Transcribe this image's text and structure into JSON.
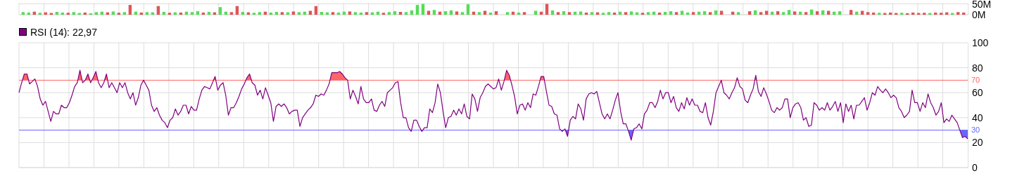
{
  "chart_data": [
    {
      "type": "bar",
      "categories": [
        null,
        null,
        null,
        null,
        null,
        null,
        null,
        null,
        null,
        null,
        null,
        null,
        null,
        null,
        null,
        null,
        null,
        null,
        null,
        null,
        null,
        null,
        null,
        null,
        null,
        null,
        null,
        null,
        null,
        null,
        null,
        null,
        null,
        null,
        null,
        null,
        null,
        null,
        null,
        null,
        null,
        null,
        null,
        null,
        null,
        null,
        null,
        null,
        null,
        null,
        null,
        null,
        null,
        null,
        null,
        null,
        null,
        null,
        null,
        null,
        null,
        null,
        null,
        null,
        null,
        null,
        null,
        null,
        null,
        null,
        null,
        null,
        null,
        null,
        null,
        null,
        null,
        null,
        null,
        null,
        null,
        null,
        null,
        null,
        null,
        null,
        null,
        null,
        null,
        null,
        null,
        null,
        null,
        null,
        null,
        null,
        null,
        null,
        null,
        null,
        null,
        null,
        null,
        null,
        null,
        null,
        null,
        null,
        null,
        null,
        null,
        null,
        null,
        null,
        null,
        null,
        null,
        null,
        null,
        null,
        null,
        null,
        null,
        null,
        null,
        null,
        null,
        null,
        null,
        null,
        null,
        null,
        null,
        null,
        null,
        null,
        null,
        null,
        null,
        null,
        null,
        null,
        null,
        null,
        null,
        null,
        null,
        null,
        null,
        null,
        null,
        null,
        null,
        null,
        null,
        null,
        null,
        null,
        null,
        null,
        null,
        null,
        null,
        null,
        null,
        null,
        null,
        null
      ],
      "values": [
        12,
        10,
        14,
        9,
        11,
        8,
        13,
        10,
        9,
        12,
        8,
        10,
        7,
        12,
        14,
        11,
        15,
        9,
        12,
        45,
        14,
        10,
        12,
        11,
        40,
        13,
        9,
        11,
        10,
        14,
        12,
        16,
        10,
        13,
        11,
        35,
        14,
        12,
        40,
        13,
        11,
        9,
        12,
        14,
        10,
        13,
        12,
        11,
        15,
        12,
        14,
        18,
        40,
        13,
        11,
        12,
        10,
        14,
        15,
        12,
        10,
        12,
        11,
        14,
        9,
        12,
        16,
        13,
        12,
        20,
        45,
        50,
        18,
        22,
        14,
        16,
        20,
        15,
        12,
        48,
        14,
        12,
        18,
        10,
        16,
        null,
        12,
        14,
        10,
        12,
        null,
        18,
        14,
        50,
        20,
        12,
        16,
        12,
        14,
        15,
        10,
        12,
        11,
        9,
        12,
        10,
        14,
        12,
        15,
        11,
        9,
        12,
        14,
        10,
        13,
        16,
        12,
        18,
        10,
        12,
        14,
        16,
        12,
        20,
        18,
        null,
        14,
        12,
        null,
        16,
        20,
        12,
        18,
        14,
        16,
        12,
        22,
        15,
        14,
        12,
        24,
        16,
        20,
        18,
        14,
        16,
        null,
        22,
        14,
        18,
        12,
        10,
        9,
        8,
        10,
        8,
        9,
        7,
        10,
        8,
        9,
        8,
        10,
        9,
        11,
        8,
        12,
        10
      ],
      "colors": [
        "#55dd55",
        "#55dd55",
        "#e05555",
        "#55dd55",
        "#e05555",
        "#e05555",
        "#55dd55",
        "#55dd55",
        "#e05555",
        "#55dd55",
        "#55dd55",
        "#e05555",
        "#55dd55",
        "#55dd55",
        "#55dd55",
        "#e05555",
        "#55dd55",
        "#e05555",
        "#55dd55",
        "#e05555",
        "#55dd55",
        "#e05555",
        "#55dd55",
        "#55dd55",
        "#e05555",
        "#55dd55",
        "#e05555",
        "#55dd55",
        "#e05555",
        "#55dd55",
        "#55dd55",
        "#55dd55",
        "#e05555",
        "#55dd55",
        "#e05555",
        "#55dd55",
        "#55dd55",
        "#e05555",
        "#e05555",
        "#55dd55",
        "#e05555",
        "#55dd55",
        "#55dd55",
        "#e05555",
        "#55dd55",
        "#55dd55",
        "#e05555",
        "#55dd55",
        "#e05555",
        "#55dd55",
        "#55dd55",
        "#e05555",
        "#e05555",
        "#55dd55",
        "#55dd55",
        "#e05555",
        "#55dd55",
        "#55dd55",
        "#e05555",
        "#55dd55",
        "#55dd55",
        "#e05555",
        "#55dd55",
        "#55dd55",
        "#e05555",
        "#55dd55",
        "#55dd55",
        "#e05555",
        "#55dd55",
        "#55dd55",
        "#55dd55",
        "#55dd55",
        "#e05555",
        "#55dd55",
        "#e05555",
        "#55dd55",
        "#55dd55",
        "#e05555",
        "#55dd55",
        "#55dd55",
        "#e05555",
        "#55dd55",
        "#e05555",
        "#55dd55",
        "#e05555",
        "#e05555",
        "#55dd55",
        "#e05555",
        "#55dd55",
        "#e05555",
        "#e05555",
        "#55dd55",
        "#e05555",
        "#e05555",
        "#55dd55",
        "#e05555",
        "#55dd55",
        "#e05555",
        "#55dd55",
        "#55dd55",
        "#e05555",
        "#55dd55",
        "#e05555",
        "#55dd55",
        "#55dd55",
        "#e05555",
        "#55dd55",
        "#e05555",
        "#55dd55",
        "#55dd55",
        "#e05555",
        "#55dd55",
        "#55dd55",
        "#e05555",
        "#55dd55",
        "#55dd55",
        "#e05555",
        "#55dd55",
        "#55dd55",
        "#e05555",
        "#55dd55",
        "#55dd55",
        "#e05555",
        "#55dd55",
        "#e05555",
        "#55dd55",
        "#e05555",
        "#55dd55",
        "#55dd55",
        "#e05555",
        "#55dd55",
        "#e05555",
        "#e05555",
        "#55dd55",
        "#e05555",
        "#55dd55",
        "#55dd55",
        "#e05555",
        "#55dd55",
        "#e05555",
        "#55dd55",
        "#e05555",
        "#55dd55",
        "#e05555",
        "#55dd55",
        "#55dd55",
        "#e05555",
        "#e05555",
        "#55dd55",
        "#e05555",
        "#e05555",
        "#e05555",
        "#55dd55",
        "#e05555",
        "#e05555",
        "#e05555",
        "#55dd55",
        "#e05555",
        "#e05555",
        "#e05555",
        "#e05555",
        "#55dd55",
        "#e05555",
        "#e05555",
        "#e05555",
        "#55dd55",
        "#e05555",
        "#e05555"
      ],
      "ylim": [
        0,
        55
      ],
      "yticks": [
        {
          "value": 50,
          "label": "50M"
        },
        {
          "value": 0,
          "label": "0M"
        }
      ],
      "grid": true,
      "tick_labels": "y"
    },
    {
      "type": "line",
      "categories": [
        null,
        null,
        null,
        null,
        null,
        null,
        null,
        null,
        null,
        null,
        null,
        null,
        null,
        null,
        null,
        null,
        null,
        null,
        null,
        null,
        null,
        null,
        null,
        null,
        null,
        null,
        null,
        null,
        null,
        null,
        null,
        null,
        null,
        null,
        null,
        null,
        null,
        null,
        null,
        null,
        null,
        null,
        null,
        null,
        null,
        null,
        null,
        null,
        null,
        null,
        null,
        null,
        null,
        null,
        null,
        null,
        null,
        null,
        null,
        null,
        null,
        null,
        null,
        null,
        null,
        null,
        null,
        null,
        null,
        null,
        null,
        null,
        null,
        null,
        null,
        null,
        null,
        null,
        null,
        null,
        null,
        null,
        null,
        null,
        null,
        null,
        null,
        null,
        null,
        null,
        null,
        null,
        null,
        null,
        null,
        null,
        null,
        null,
        null,
        null,
        null,
        null,
        null,
        null,
        null,
        null,
        null,
        null,
        null,
        null,
        null,
        null,
        null,
        null,
        null,
        null,
        null,
        null,
        null,
        null,
        null,
        null,
        null,
        null,
        null,
        null,
        null,
        null,
        null,
        null,
        null,
        null,
        null,
        null,
        null,
        null,
        null,
        null,
        null,
        null,
        null,
        null,
        null,
        null,
        null,
        null,
        null,
        null,
        null,
        null,
        null,
        null,
        null,
        null,
        null,
        null,
        null,
        null,
        null,
        null,
        null,
        null,
        null,
        null,
        null,
        null,
        null,
        null,
        null,
        null,
        null,
        null,
        null,
        null,
        null,
        null,
        null,
        null,
        null,
        null,
        null,
        null,
        null,
        null,
        null,
        null,
        null,
        null,
        null,
        null,
        null,
        null,
        null,
        null,
        null,
        null,
        null,
        null,
        null,
        null,
        null,
        null,
        null,
        null,
        null,
        null,
        null,
        null,
        null,
        null,
        null,
        null,
        null,
        null,
        null,
        null,
        null,
        null,
        null,
        null,
        null,
        null,
        null,
        null,
        null,
        null,
        null,
        null,
        null,
        null,
        null,
        null,
        null,
        null,
        null,
        null,
        null,
        null,
        null,
        null,
        null,
        null,
        null,
        null,
        null,
        null,
        null,
        null,
        null,
        null,
        null,
        null,
        null,
        null,
        null,
        null,
        null,
        null,
        null,
        null,
        null,
        null,
        null,
        null,
        null,
        null,
        null,
        null,
        null,
        null,
        null,
        null,
        null,
        null,
        null,
        null,
        null,
        null,
        null,
        null,
        null,
        null,
        null,
        null,
        null,
        null,
        null,
        null,
        null,
        null,
        null,
        null,
        null,
        null,
        null,
        null,
        null,
        null,
        null,
        null,
        null,
        null,
        null,
        null,
        null,
        null,
        null,
        null,
        null,
        null,
        null,
        null,
        null,
        null,
        null,
        null,
        null,
        null,
        null,
        null,
        null,
        null,
        null,
        null,
        null,
        null,
        null,
        null,
        null,
        null,
        null,
        null,
        null,
        null,
        null,
        null,
        null,
        null,
        null,
        null,
        null,
        null,
        null,
        null,
        null,
        null,
        null,
        null,
        null,
        null,
        null,
        null,
        null,
        null,
        null,
        null,
        null,
        null,
        null
      ],
      "series": [
        {
          "name": "RSI (14): 22,97",
          "color": "#800080",
          "values": [
            60,
            68,
            75,
            75,
            67,
            69,
            71,
            65,
            55,
            50,
            53,
            45,
            37,
            45,
            43,
            43,
            50,
            48,
            48,
            52,
            58,
            65,
            68,
            78,
            68,
            70,
            75,
            68,
            72,
            77,
            68,
            64,
            68,
            75,
            64,
            68,
            64,
            60,
            68,
            64,
            68,
            60,
            55,
            60,
            50,
            56,
            66,
            70,
            66,
            62,
            50,
            45,
            48,
            42,
            38,
            36,
            32,
            38,
            40,
            47,
            42,
            45,
            50,
            50,
            43,
            49,
            46,
            46,
            55,
            62,
            65,
            64,
            63,
            68,
            73,
            62,
            66,
            68,
            58,
            42,
            48,
            48,
            52,
            57,
            63,
            67,
            72,
            75,
            68,
            66,
            58,
            62,
            55,
            64,
            58,
            52,
            37,
            49,
            51,
            49,
            51,
            48,
            43,
            45,
            46,
            46,
            33,
            40,
            43,
            46,
            48,
            51,
            58,
            57,
            59,
            58,
            62,
            67,
            76,
            76,
            76,
            77,
            75,
            72,
            70,
            55,
            62,
            57,
            51,
            65,
            55,
            52,
            52,
            55,
            46,
            45,
            50,
            53,
            49,
            60,
            62,
            64,
            68,
            69,
            52,
            40,
            40,
            32,
            29,
            38,
            38,
            33,
            29,
            32,
            32,
            47,
            44,
            52,
            67,
            60,
            45,
            32,
            40,
            41,
            46,
            42,
            47,
            43,
            51,
            41,
            39,
            59,
            55,
            45,
            56,
            60,
            65,
            67,
            65,
            63,
            64,
            71,
            62,
            69,
            78,
            74,
            66,
            57,
            43,
            50,
            51,
            46,
            52,
            48,
            59,
            58,
            65,
            73,
            73,
            61,
            50,
            49,
            43,
            42,
            31,
            29,
            31,
            25,
            38,
            41,
            39,
            51,
            47,
            38,
            55,
            59,
            60,
            59,
            61,
            52,
            43,
            39,
            43,
            39,
            46,
            54,
            60,
            45,
            35,
            35,
            29,
            22,
            31,
            32,
            35,
            31,
            43,
            46,
            52,
            52,
            48,
            53,
            62,
            55,
            60,
            60,
            52,
            57,
            48,
            45,
            52,
            47,
            56,
            50,
            55,
            50,
            50,
            45,
            44,
            52,
            40,
            34,
            45,
            60,
            65,
            70,
            60,
            58,
            55,
            60,
            64,
            72,
            65,
            63,
            54,
            52,
            58,
            63,
            74,
            61,
            57,
            64,
            59,
            53,
            46,
            44,
            48,
            46,
            48,
            55,
            55,
            40,
            48,
            51,
            52,
            48,
            38,
            40,
            33,
            34,
            52,
            50,
            46,
            48,
            46,
            52,
            46,
            49,
            53,
            45,
            52,
            36,
            51,
            45,
            50,
            39,
            50,
            50,
            53,
            56,
            46,
            52,
            60,
            58,
            65,
            62,
            60,
            63,
            60,
            56,
            58,
            56,
            48,
            45,
            40,
            42,
            45,
            62,
            52,
            52,
            45,
            52,
            48,
            59,
            52,
            48,
            42,
            45,
            52,
            36,
            39,
            37,
            42,
            39,
            36,
            30,
            24,
            25,
            23
          ]
        }
      ],
      "ylim": [
        0,
        100
      ],
      "yticks": [
        0,
        20,
        40,
        60,
        80,
        100
      ],
      "grid": true,
      "tick_labels": "y",
      "legend": "top left",
      "ref_lines": [
        {
          "axis": "y",
          "value": 70,
          "label": "70",
          "color": "#ff6666"
        },
        {
          "axis": "y",
          "value": 30,
          "label": "30",
          "color": "#6666ff"
        }
      ]
    }
  ]
}
